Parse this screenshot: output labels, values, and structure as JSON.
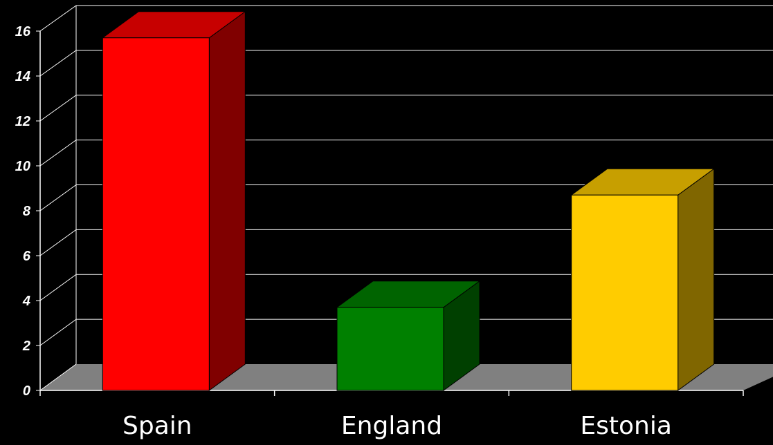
{
  "chart_data": {
    "type": "bar",
    "style": "3d-column",
    "categories": [
      "Spain",
      "England",
      "Estonia"
    ],
    "values": [
      15.7,
      3.7,
      8.7
    ],
    "colors": {
      "Spain": "#ff0000",
      "England": "#008000",
      "Estonia": "#ffcc00"
    },
    "title": "",
    "xlabel": "",
    "ylabel": "",
    "ylim": [
      0,
      16
    ],
    "yticks": [
      0,
      2,
      4,
      6,
      8,
      10,
      12,
      14,
      16
    ],
    "grid": true,
    "legend": "none",
    "background": "#000000",
    "gridline_color": "#ffffff",
    "floor_color": "#808080"
  }
}
